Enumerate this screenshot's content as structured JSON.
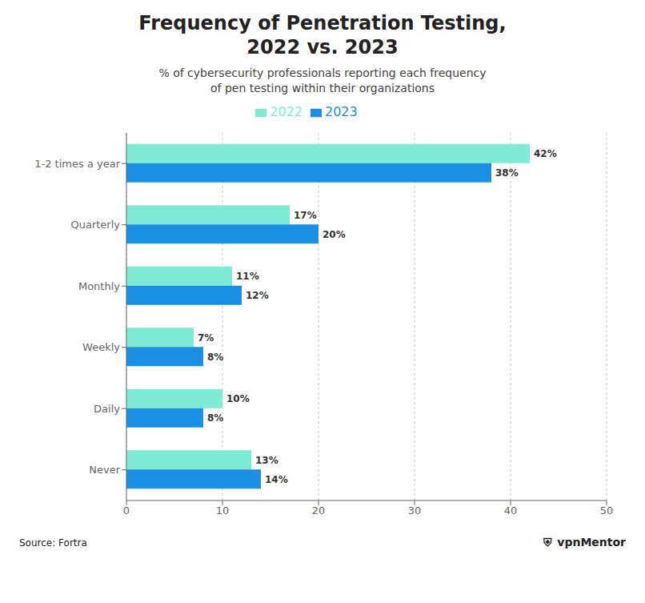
{
  "chart_data": {
    "type": "bar",
    "orientation": "horizontal",
    "title": "Frequency of Penetration Testing,\n2022 vs. 2023",
    "subtitle": "% of cybersecurity professionals reporting each frequency\nof pen testing within their organizations",
    "categories": [
      "Never",
      "Daily",
      "Weekly",
      "Monthly",
      "Quarterly",
      "1-2 times a year"
    ],
    "series": [
      {
        "name": "2022",
        "color": "#7EECD4",
        "values": [
          13,
          10,
          7,
          11,
          17,
          42
        ],
        "value_labels": [
          "13%",
          "10%",
          "7%",
          "11%",
          "17%",
          "42%"
        ]
      },
      {
        "name": "2023",
        "color": "#1A8FE3",
        "values": [
          14,
          8,
          8,
          12,
          20,
          38
        ],
        "value_labels": [
          "14%",
          "8%",
          "8%",
          "12%",
          "20%",
          "38%"
        ]
      }
    ],
    "xlim": [
      0,
      50
    ],
    "xticks": [
      0,
      10,
      20,
      30,
      40,
      50
    ],
    "grid": true,
    "legend": "top",
    "data_labels": true,
    "annotations": [
      "Source: Fortra",
      "⛨",
      "vpnMentor"
    ]
  }
}
